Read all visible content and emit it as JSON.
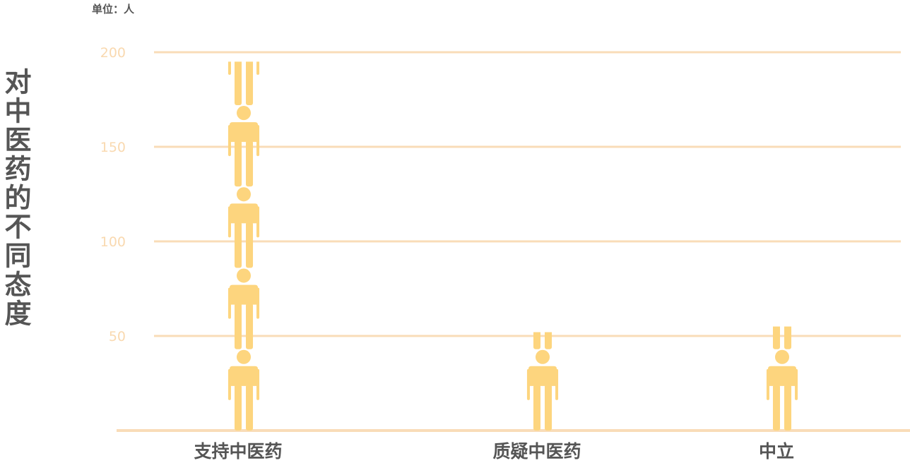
{
  "chart_data": {
    "type": "bar",
    "subtype": "pictograph",
    "unit_label": "单位：人",
    "ylabel": "对中医药的不同态度",
    "title": "",
    "xlabel": "",
    "categories": [
      "支持中医药",
      "质疑中医药",
      "中立"
    ],
    "values": [
      195,
      52,
      55
    ],
    "ylim": [
      0,
      200
    ],
    "yticks": [
      50,
      100,
      150,
      200
    ],
    "grid": true,
    "legend": "none",
    "icon": "person-icon",
    "units_per_icon": 43,
    "colors": {
      "icon": "#fdd57e",
      "grid": "#f9dcb8",
      "axis": "#f9dcb8",
      "tick_text": "#f9d9b0",
      "label_text": "#555555"
    }
  }
}
